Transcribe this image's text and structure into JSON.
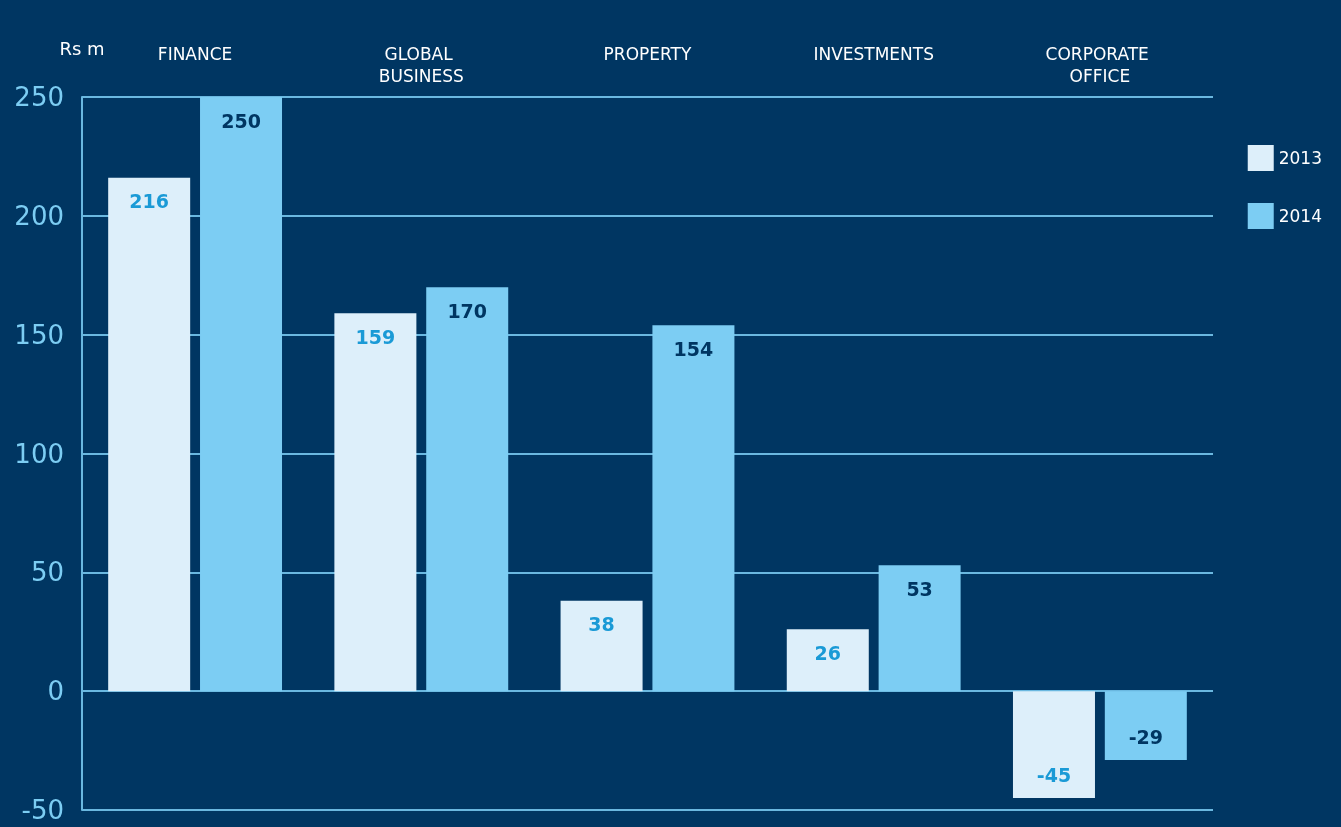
{
  "chart_data": {
    "type": "bar",
    "ylabel": "Rs m",
    "categories": [
      "FINANCE",
      "GLOBAL BUSINESS",
      "PROPERTY",
      "INVESTMENTS",
      "CORPORATE OFFICE"
    ],
    "series": [
      {
        "name": "2013",
        "color": "#ddeffa",
        "values": [
          216,
          159,
          38,
          26,
          -45
        ]
      },
      {
        "name": "2014",
        "color": "#7ccdf3",
        "values": [
          250,
          170,
          154,
          53,
          -29
        ]
      }
    ],
    "ylim": [
      -50,
      250
    ],
    "yticks": [
      -50,
      0,
      50,
      100,
      150,
      200,
      250
    ],
    "grid": "y",
    "legend": "right",
    "data_labels": true
  }
}
